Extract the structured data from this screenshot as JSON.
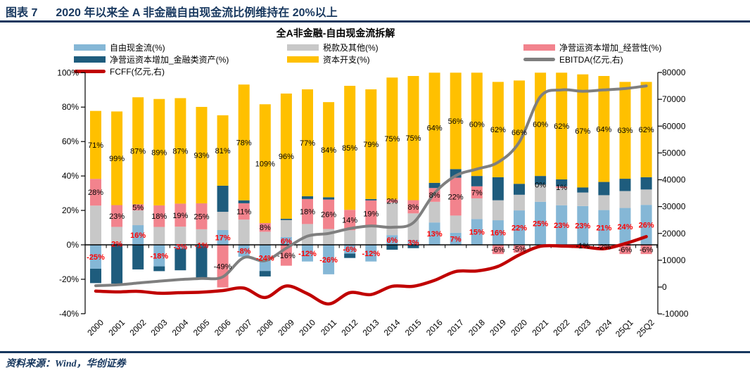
{
  "header": {
    "figure_label": "图表 7",
    "title": "2020 年以来全 A 非金融自由现金流比例维持在 20%以上"
  },
  "footer": {
    "source": "资料来源：Wind，华创证券"
  },
  "colors": {
    "navy": "#17375E",
    "free_cash_flow": "#85B7D6",
    "tax_other": "#C8C8C8",
    "nwc_operating": "#F2838D",
    "nwc_financial": "#1E5C7D",
    "capex": "#FFC000",
    "ebitda_line": "#7F7F7F",
    "fcff_line": "#C00000",
    "red_label": "#FF0000",
    "axis": "#000000"
  },
  "legend": {
    "columns": [
      {
        "x": 105,
        "items": [
          {
            "type": "bar",
            "color": "#85B7D6",
            "label": "自由现金流(%)"
          },
          {
            "type": "bar",
            "color": "#1E5C7D",
            "label": "净营运资本增加_金融类资产(%)"
          },
          {
            "type": "line",
            "color": "#C00000",
            "label": "FCFF(亿元,右)"
          }
        ]
      },
      {
        "x": 408,
        "items": [
          {
            "type": "bar",
            "color": "#C8C8C8",
            "label": "税款及其他(%)"
          },
          {
            "type": "bar",
            "color": "#FFC000",
            "label": "资本开支(%)"
          }
        ]
      },
      {
        "x": 744,
        "items": [
          {
            "type": "bar",
            "color": "#F2838D",
            "label": "净营运资本增加_经营性(%)"
          },
          {
            "type": "line",
            "color": "#7F7F7F",
            "label": "EBITDA(亿元,右)"
          }
        ]
      }
    ]
  },
  "chart_data": {
    "type": "bar",
    "subtype": "100%-stacked-with-negatives plus line overlays",
    "normalization": "each segment height = value / sum(|values|) of that category",
    "title": "全A非金融-自由现金流拆解",
    "categories": [
      "2000",
      "2001",
      "2002",
      "2003",
      "2004",
      "2005",
      "2006",
      "2007",
      "2008",
      "2009",
      "2010",
      "2011",
      "2012",
      "2013",
      "2014",
      "2015",
      "2016",
      "2017",
      "2018",
      "2019",
      "2020",
      "2021",
      "2022",
      "2023",
      "2024",
      "25Q1",
      "25Q2"
    ],
    "series": [
      {
        "name": "自由现金流(%)",
        "color": "#85B7D6",
        "values": [
          -25,
          2,
          16,
          -18,
          -3,
          -1,
          17,
          -8,
          -24,
          6,
          -12,
          -26,
          -6,
          -12,
          6,
          3,
          13,
          7,
          15,
          16,
          22,
          25,
          23,
          23,
          21,
          24,
          26
        ]
      },
      {
        "name": "税款及其他(%)",
        "color": "#C8C8C8",
        "values": [
          41,
          17,
          12,
          15,
          15,
          15,
          21,
          17,
          12,
          13,
          15,
          14,
          10,
          13,
          20,
          16,
          12,
          10,
          12,
          13,
          10,
          10,
          10,
          8,
          9,
          11,
          10
        ]
      },
      {
        "name": "净营运资本增加_经营性(%)",
        "color": "#F2838D",
        "values": [
          28,
          23,
          5,
          18,
          19,
          25,
          -49,
          11,
          8,
          -16,
          18,
          26,
          14,
          19,
          2,
          8,
          8,
          22,
          7,
          -6,
          -5,
          0,
          1,
          -1,
          -2,
          -6,
          -6
        ]
      },
      {
        "name": "净营运资本增加_金融类资产(%)",
        "color": "#1E5C7D",
        "values": [
          -15,
          -41,
          -20,
          -4,
          -18,
          -32,
          30,
          2,
          -5,
          1,
          2,
          2,
          -3,
          1,
          -3,
          -2,
          3,
          5,
          6,
          15,
          7,
          5,
          4,
          3,
          8,
          8,
          8
        ]
      },
      {
        "name": "资本开支(%)",
        "color": "#FFC000",
        "values": [
          71,
          99,
          87,
          89,
          87,
          93,
          81,
          78,
          109,
          96,
          77,
          84,
          85,
          79,
          75,
          75,
          64,
          56,
          60,
          62,
          66,
          60,
          62,
          67,
          64,
          63,
          62
        ]
      }
    ],
    "lines": [
      {
        "name": "EBITDA(亿元,右)",
        "color": "#7F7F7F",
        "axis": "right",
        "width": 4,
        "values": [
          500,
          800,
          1500,
          2200,
          2800,
          3200,
          3800,
          11000,
          9800,
          14500,
          19000,
          20000,
          21800,
          22800,
          22300,
          24000,
          35000,
          41500,
          44000,
          46500,
          54000,
          71000,
          73500,
          73000,
          73500,
          74000,
          75000
        ]
      },
      {
        "name": "FCFF(亿元,右)",
        "color": "#C00000",
        "axis": "right",
        "width": 4.5,
        "values": [
          -1500,
          -1800,
          -1600,
          -2300,
          -2100,
          -1900,
          -1300,
          -400,
          -3900,
          400,
          -2500,
          -6300,
          -2100,
          -2800,
          300,
          300,
          2500,
          5800,
          6000,
          7700,
          12000,
          15200,
          15300,
          15000,
          14300,
          16200,
          18800
        ]
      }
    ],
    "labels": {
      "capex": [
        "71%",
        "99%",
        "87%",
        "89%",
        "87%",
        "93%",
        "81%",
        "78%",
        "109%",
        "96%",
        "77%",
        "84%",
        "85%",
        "79%",
        "75%",
        "75%",
        "64%",
        "56%",
        "60%",
        "62%",
        "66%",
        "60%",
        "62%",
        "67%",
        "64%",
        "63%",
        "62%"
      ],
      "nwc_oper": [
        "28%",
        "23%",
        "5%",
        "18%",
        "19%",
        "25%",
        "-49%",
        "11%",
        "8%",
        "-16%",
        "18%",
        "26%",
        "14%",
        "19%",
        "2%",
        "8%",
        "8%",
        "22%",
        "7%",
        "-6%",
        "-5%",
        "0%",
        "1%",
        "-1%",
        "-2%",
        "-6%",
        "-6%"
      ],
      "fcf": [
        "-25%",
        "2%",
        "16%",
        "-18%",
        "-3%",
        "-1%",
        "17%",
        "-8%",
        "-24%",
        "6%",
        "-12%",
        "-26%",
        "-6%",
        "-12%",
        "6%",
        "3%",
        "13%",
        "7%",
        "15%",
        "16%",
        "22%",
        "25%",
        "23%",
        "23%",
        "21%",
        "24%",
        "26%"
      ]
    },
    "left_axis": {
      "tick_labels": [
        "100%",
        "80%",
        "60%",
        "40%",
        "20%",
        "0%",
        "-20%",
        "-40%"
      ],
      "tick_values": [
        100,
        80,
        60,
        40,
        20,
        0,
        -20,
        -40
      ],
      "min": -40,
      "max": 100
    },
    "right_axis": {
      "tick_labels": [
        "80000",
        "70000",
        "60000",
        "50000",
        "40000",
        "30000",
        "20000",
        "10000",
        "0",
        "-10000"
      ],
      "tick_values": [
        80000,
        70000,
        60000,
        50000,
        40000,
        30000,
        20000,
        10000,
        0,
        -10000
      ],
      "min": -10000,
      "max": 80000
    },
    "grid": "off",
    "legend_position": "top"
  }
}
